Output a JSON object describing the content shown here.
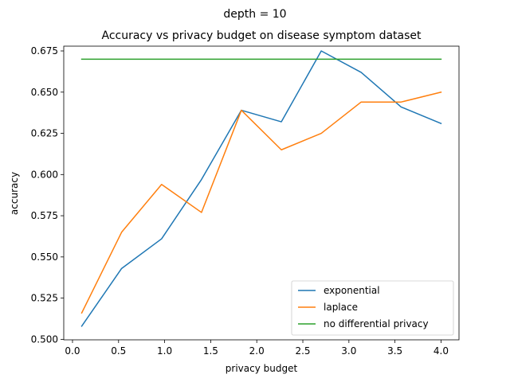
{
  "chart_data": {
    "type": "line",
    "suptitle": "depth = 10",
    "title": "Accuracy vs privacy budget on disease symptom dataset",
    "xlabel": "privacy budget",
    "ylabel": "accuracy",
    "xlim": [
      -0.095,
      4.195
    ],
    "ylim": [
      0.4997,
      0.6779
    ],
    "xticks": [
      0.0,
      0.5,
      1.0,
      1.5,
      2.0,
      2.5,
      3.0,
      3.5,
      4.0
    ],
    "xtick_labels": [
      "0.0",
      "0.5",
      "1.0",
      "1.5",
      "2.0",
      "2.5",
      "3.0",
      "3.5",
      "4.0"
    ],
    "yticks": [
      0.5,
      0.525,
      0.55,
      0.575,
      0.6,
      0.625,
      0.65,
      0.675
    ],
    "ytick_labels": [
      "0.500",
      "0.525",
      "0.550",
      "0.575",
      "0.600",
      "0.625",
      "0.650",
      "0.675"
    ],
    "legend_position": "lower-right",
    "grid": false,
    "x": [
      0.1,
      0.533,
      0.967,
      1.4,
      1.833,
      2.267,
      2.7,
      3.133,
      3.567,
      4.0
    ],
    "series": [
      {
        "name": "exponential",
        "color": "#1f77b4",
        "values": [
          0.508,
          0.543,
          0.561,
          0.597,
          0.639,
          0.632,
          0.675,
          0.662,
          0.641,
          0.631
        ]
      },
      {
        "name": "laplace",
        "color": "#ff7f0e",
        "values": [
          0.516,
          0.565,
          0.594,
          0.577,
          0.639,
          0.615,
          0.625,
          0.644,
          0.644,
          0.65
        ]
      },
      {
        "name": "no differential privacy",
        "color": "#2ca02c",
        "values": [
          0.67,
          0.67,
          0.67,
          0.67,
          0.67,
          0.67,
          0.67,
          0.67,
          0.67,
          0.67
        ]
      }
    ]
  }
}
